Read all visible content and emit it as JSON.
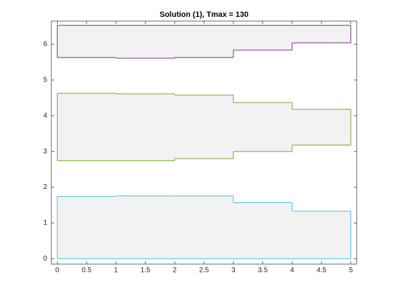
{
  "chart_data": {
    "type": "step-band",
    "title": "Solution (1), Tmax = 130",
    "bins": [
      0,
      1,
      2,
      3,
      4,
      5
    ],
    "series": [
      {
        "color": "#4dbeee",
        "lower": [
          0,
          0,
          0,
          0,
          0
        ],
        "upper": [
          1.745,
          1.76,
          1.76,
          1.57,
          1.33
        ]
      },
      {
        "color": "#77ac30",
        "lower": [
          2.745,
          2.745,
          2.8,
          3.0,
          3.18
        ],
        "upper": [
          4.63,
          4.61,
          4.58,
          4.37,
          4.18
        ]
      },
      {
        "color": "#7e2f8e",
        "lower": [
          5.63,
          5.61,
          5.63,
          5.84,
          6.04
        ],
        "upper": [
          6.53,
          6.53,
          6.53,
          6.53,
          6.53
        ]
      }
    ],
    "fill": "#f2f2f2",
    "xlim": [
      -0.1,
      5.1
    ],
    "ylim": [
      -0.15,
      6.65
    ],
    "xticks": [
      0,
      0.5,
      1,
      1.5,
      2,
      2.5,
      3,
      3.5,
      4,
      4.5,
      5
    ],
    "yticks": [
      0,
      1,
      2,
      3,
      4,
      5,
      6
    ]
  }
}
